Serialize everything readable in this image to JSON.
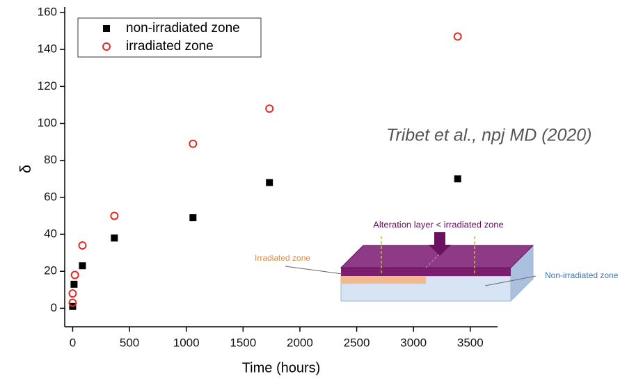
{
  "chart_data": {
    "type": "scatter",
    "x_label": "Time (hours)",
    "y_label": "δ",
    "xlim": [
      -70,
      3740
    ],
    "ylim": [
      -10,
      163
    ],
    "xticks": [
      0,
      500,
      1000,
      1500,
      2000,
      2500,
      3000,
      3500
    ],
    "yticks": [
      0,
      20,
      40,
      60,
      80,
      100,
      120,
      140,
      160
    ],
    "legend": "upper left",
    "series": [
      {
        "name": "non-irradiated zone",
        "color": "#000000",
        "marker": "square",
        "x": [
          0,
          12,
          86,
          367,
          1059,
          1732,
          3389
        ],
        "values": [
          1,
          13,
          23,
          38,
          49,
          68,
          70
        ]
      },
      {
        "name": "irradiated zone",
        "color": "#e32a26",
        "marker": "circle",
        "x": [
          0,
          0,
          20,
          86,
          367,
          1059,
          1732,
          3389
        ],
        "values": [
          3,
          8,
          18,
          34,
          50,
          89,
          108,
          147
        ]
      }
    ],
    "citation": "Tribet et al., npj MD (2020)",
    "inset_labels": [
      "Alteration layer < irradiated zone",
      "Irradiated zone",
      "Non-irradiated zone"
    ]
  }
}
